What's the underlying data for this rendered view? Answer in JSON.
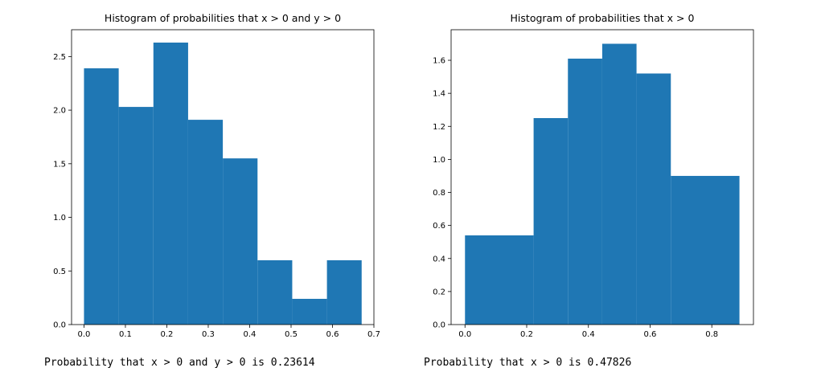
{
  "chart_data": [
    {
      "type": "bar",
      "title": "Histogram of probabilities that x > 0 and y > 0",
      "bin_edges": [
        0.0,
        0.0838,
        0.1676,
        0.2514,
        0.3352,
        0.419,
        0.5028,
        0.5866,
        0.6704
      ],
      "values": [
        2.39,
        2.03,
        2.63,
        1.91,
        1.55,
        0.6,
        0.24,
        0.6
      ],
      "xlim": [
        -0.03,
        0.7
      ],
      "ylim": [
        0,
        2.75
      ],
      "xticks": [
        0.0,
        0.1,
        0.2,
        0.3,
        0.4,
        0.5,
        0.6,
        0.7
      ],
      "xtick_labels": [
        "0.0",
        "0.1",
        "0.2",
        "0.3",
        "0.4",
        "0.5",
        "0.6",
        "0.7"
      ],
      "yticks": [
        0.0,
        0.5,
        1.0,
        1.5,
        2.0,
        2.5
      ],
      "ytick_labels": [
        "0.0",
        "0.5",
        "1.0",
        "1.5",
        "2.0",
        "2.5"
      ],
      "color": "#1f77b4",
      "xlabel": "",
      "ylabel": ""
    },
    {
      "type": "bar",
      "title": "Histogram of probabilities that x > 0",
      "bin_edges": [
        0.0,
        0.2224,
        0.3336,
        0.4448,
        0.556,
        0.6672,
        0.8896
      ],
      "values": [
        0.54,
        1.25,
        1.61,
        1.7,
        1.52,
        0.9
      ],
      "xlim": [
        -0.045,
        0.935
      ],
      "ylim": [
        0,
        1.785
      ],
      "xticks": [
        0.0,
        0.2,
        0.4,
        0.6,
        0.8
      ],
      "xtick_labels": [
        "0.0",
        "0.2",
        "0.4",
        "0.6",
        "0.8"
      ],
      "yticks": [
        0.0,
        0.2,
        0.4,
        0.6,
        0.8,
        1.0,
        1.2,
        1.4,
        1.6
      ],
      "ytick_labels": [
        "0.0",
        "0.2",
        "0.4",
        "0.6",
        "0.8",
        "1.0",
        "1.2",
        "1.4",
        "1.6"
      ],
      "color": "#1f77b4",
      "xlabel": "",
      "ylabel": ""
    }
  ],
  "output": {
    "line1": "Probability that x > 0 and y > 0 is 0.23614",
    "line2": "Probability that x > 0 is 0.47826"
  }
}
